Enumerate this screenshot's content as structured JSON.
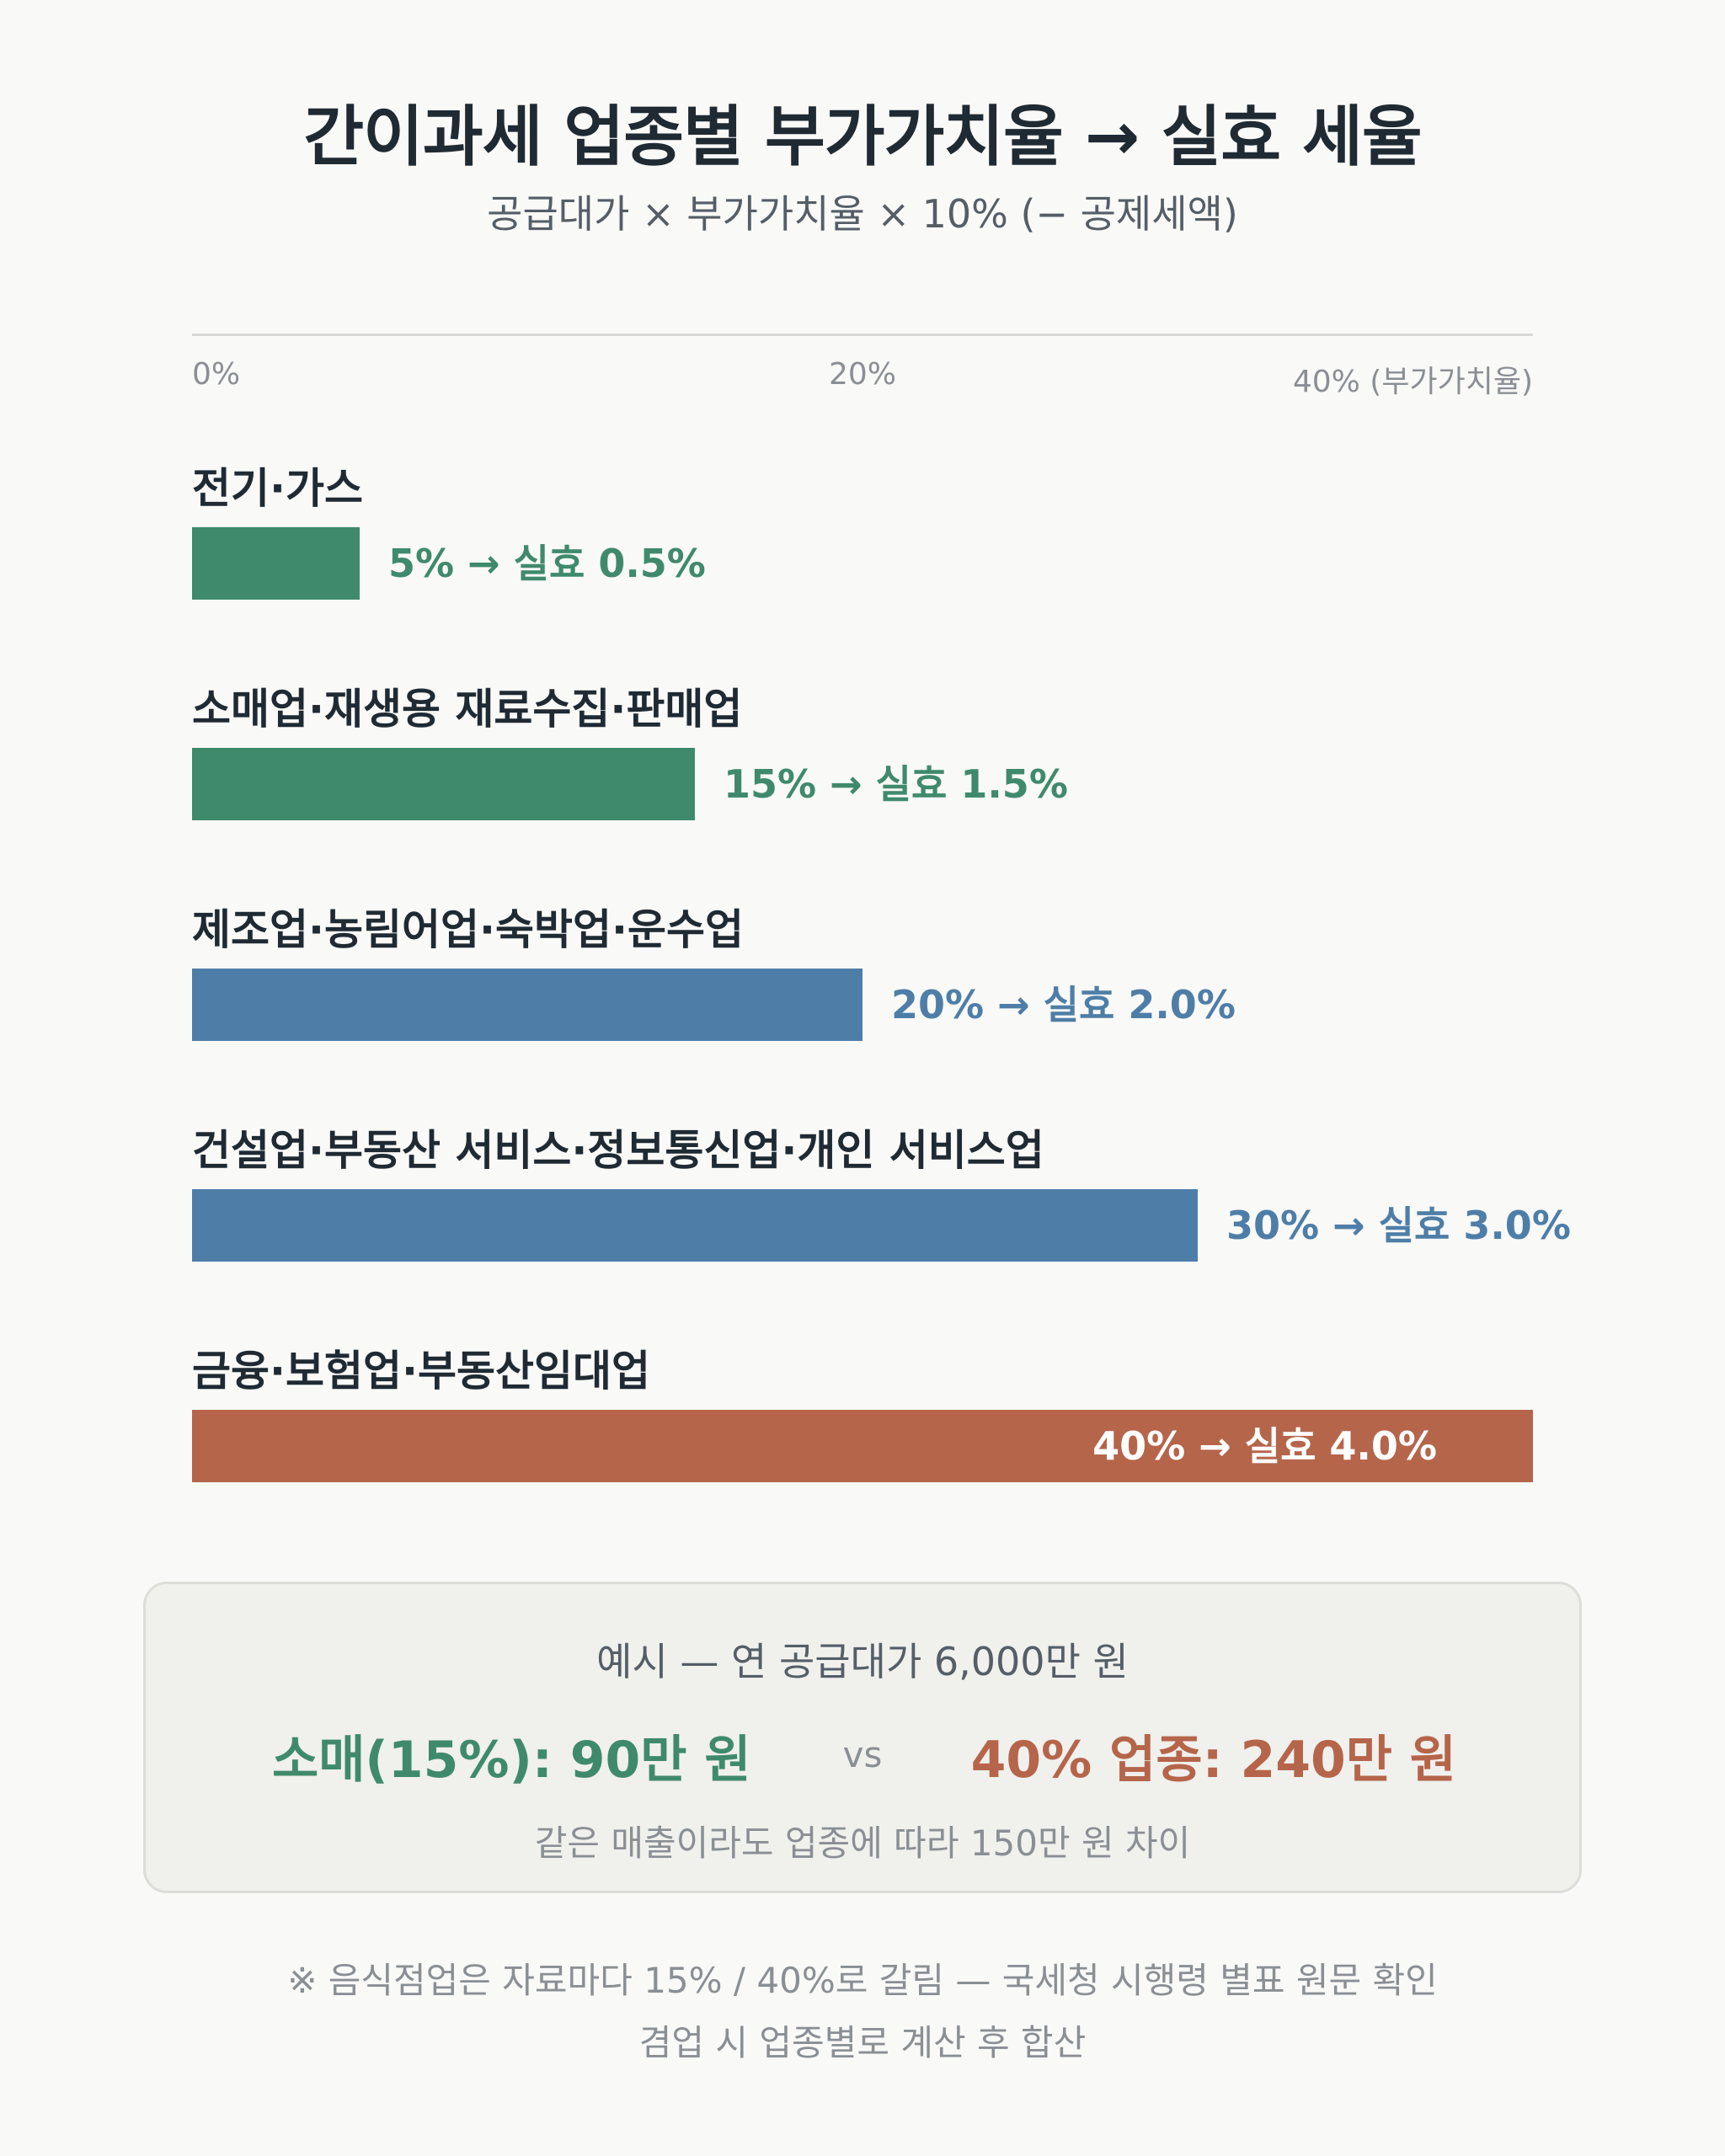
{
  "header": {
    "title": "간이과세 업종별 부가가치율 → 실효 세율",
    "subtitle": "공급대가 × 부가가치율 × 10% (− 공제세액)"
  },
  "axis": {
    "ticks": [
      "0%",
      "20%",
      "40% (부가가치율)"
    ]
  },
  "colors": {
    "green": "#3f8a6c",
    "blue": "#4e7ea8",
    "orange": "#b5654a"
  },
  "chart_data": {
    "type": "bar",
    "orientation": "horizontal",
    "xlim": [
      0,
      40
    ],
    "grid": false,
    "categories": [
      "전기·가스",
      "소매업·재생용 재료수집·판매업",
      "제조업·농림어업·숙박업·운수업",
      "건설업·부동산 서비스·정보통신업·개인 서비스업",
      "금융·보험업·부동산임대업"
    ],
    "values": [
      5,
      15,
      20,
      30,
      40
    ],
    "effective_rates": [
      0.5,
      1.5,
      2.0,
      3.0,
      4.0
    ],
    "value_labels": [
      "5% → 실효 0.5%",
      "15% → 실효 1.5%",
      "20% → 실효 2.0%",
      "30% → 실효 3.0%",
      "40% → 실효 4.0%"
    ],
    "bar_colors": [
      "#3f8a6c",
      "#3f8a6c",
      "#4e7ea8",
      "#4e7ea8",
      "#b5654a"
    ]
  },
  "example": {
    "heading": "예시 — 연 공급대가 6,000만 원",
    "left": "소매(15%): 90만 원",
    "vs": "vs",
    "right": "40% 업종: 240만 원",
    "note": "같은 매출이라도 업종에 따라 150만 원 차이"
  },
  "footer": {
    "line1": "※ 음식점업은 자료마다 15% / 40%로 갈림 — 국세청 시행령 별표 원문 확인",
    "line2": "겸업 시 업종별로 계산 후 합산"
  }
}
